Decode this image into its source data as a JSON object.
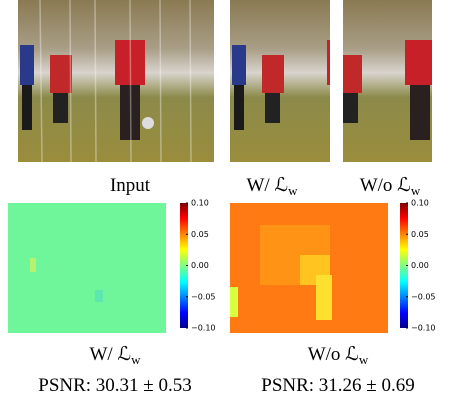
{
  "top_row": {
    "labels": [
      {
        "text": "Input"
      },
      {
        "text": "W/ ℒ",
        "sub": "w"
      },
      {
        "text": "W/o ℒ",
        "sub": "w"
      }
    ]
  },
  "bottom_row": {
    "panels": [
      {
        "label": {
          "text": "W/ ℒ",
          "sub": "w"
        },
        "psnr": "PSNR: 30.31 ± 0.53"
      },
      {
        "label": {
          "text": "W/o ℒ",
          "sub": "w"
        },
        "psnr": "PSNR: 31.26 ± 0.69"
      }
    ],
    "colorbar": {
      "ticks": [
        {
          "value": 0.1,
          "label": "0.10"
        },
        {
          "value": 0.05,
          "label": "0.05"
        },
        {
          "value": 0,
          "label": "0.00"
        },
        {
          "value": -0.05,
          "label": "−0.05"
        },
        {
          "value": -0.1,
          "label": "−0.10"
        }
      ],
      "lim": [
        -0.1,
        0.1
      ]
    }
  }
}
